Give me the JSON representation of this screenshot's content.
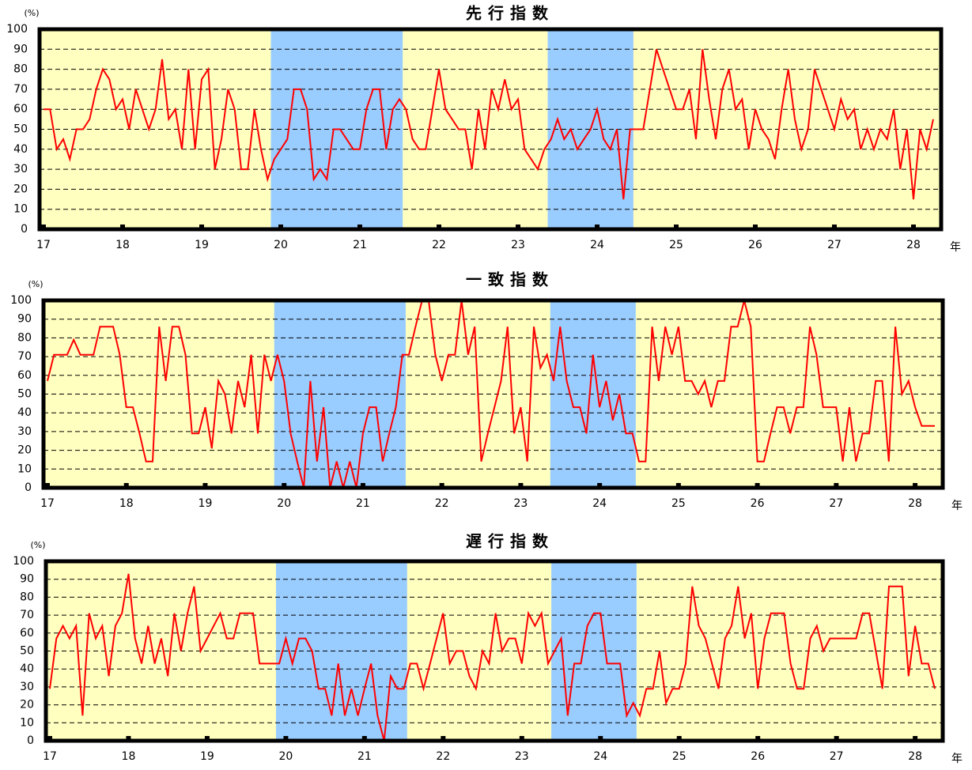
{
  "chart_data": [
    {
      "type": "line",
      "title": "先行指数",
      "y_unit": "(%)",
      "x_label": "年",
      "categories": [
        "17",
        null,
        null,
        null,
        null,
        null,
        null,
        null,
        null,
        null,
        null,
        null,
        "18",
        null,
        null,
        null,
        null,
        null,
        null,
        null,
        null,
        null,
        null,
        null,
        "19",
        null,
        null,
        null,
        null,
        null,
        null,
        null,
        null,
        null,
        null,
        null,
        "20",
        null,
        null,
        null,
        null,
        null,
        null,
        null,
        null,
        null,
        null,
        null,
        "21",
        null,
        null,
        null,
        null,
        null,
        null,
        null,
        null,
        null,
        null,
        null,
        "22",
        null,
        null,
        null,
        null,
        null,
        null,
        null,
        null,
        null,
        null,
        null,
        "23",
        null,
        null,
        null,
        null,
        null,
        null,
        null,
        null,
        null,
        null,
        null,
        "24",
        null,
        null,
        null,
        null,
        null,
        null,
        null,
        null,
        null,
        null,
        null,
        "25",
        null,
        null,
        null,
        null,
        null,
        null,
        null,
        null,
        null,
        null,
        null,
        "26",
        null,
        null,
        null,
        null,
        null,
        null,
        null,
        null,
        null,
        null,
        null,
        "27",
        null,
        null,
        null,
        null,
        null,
        null,
        null,
        null,
        null,
        null,
        null,
        "28",
        null,
        null,
        null
      ],
      "series": [
        {
          "color": "#ff0000",
          "values": [
            60,
            60,
            40,
            45,
            35,
            50,
            50,
            55,
            70,
            80,
            75,
            60,
            65,
            50,
            70,
            60,
            50,
            60,
            85,
            55,
            60,
            40,
            80,
            40,
            75,
            80,
            30,
            45,
            70,
            60,
            30,
            30,
            60,
            40,
            25,
            35,
            40,
            45,
            70,
            70,
            60,
            25,
            30,
            25,
            50,
            50,
            45,
            40,
            40,
            60,
            70,
            70,
            40,
            60,
            65,
            60,
            45,
            40,
            40,
            60,
            80,
            60,
            55,
            50,
            50,
            30,
            60,
            40,
            70,
            60,
            75,
            60,
            65,
            40,
            35,
            30,
            40,
            45,
            55,
            45,
            50,
            40,
            45,
            50,
            60,
            45,
            40,
            50,
            15,
            50,
            50,
            50,
            70,
            90,
            80,
            70,
            60,
            60,
            70,
            45,
            90,
            65,
            45,
            70,
            80,
            60,
            65,
            40,
            60,
            50,
            45,
            35,
            60,
            80,
            55,
            40,
            50,
            80,
            70,
            60,
            50,
            65,
            55,
            60,
            40,
            50,
            40,
            50,
            45,
            60,
            30,
            50,
            15,
            50,
            40,
            55
          ]
        }
      ],
      "ylim": [
        0,
        100
      ],
      "yticks": [
        0,
        10,
        20,
        30,
        40,
        50,
        60,
        70,
        80,
        90,
        100
      ],
      "grid": true,
      "background": "#ffffc0",
      "shading": {
        "color": "#99ccff",
        "ranges": [
          [
            34.5,
            54.5
          ],
          [
            76.5,
            89.5
          ]
        ]
      }
    },
    {
      "type": "line",
      "title": "一致指数",
      "y_unit": "(%)",
      "x_label": "年",
      "categories": [
        "17",
        null,
        null,
        null,
        null,
        null,
        null,
        null,
        null,
        null,
        null,
        null,
        "18",
        null,
        null,
        null,
        null,
        null,
        null,
        null,
        null,
        null,
        null,
        null,
        "19",
        null,
        null,
        null,
        null,
        null,
        null,
        null,
        null,
        null,
        null,
        null,
        "20",
        null,
        null,
        null,
        null,
        null,
        null,
        null,
        null,
        null,
        null,
        null,
        "21",
        null,
        null,
        null,
        null,
        null,
        null,
        null,
        null,
        null,
        null,
        null,
        "22",
        null,
        null,
        null,
        null,
        null,
        null,
        null,
        null,
        null,
        null,
        null,
        "23",
        null,
        null,
        null,
        null,
        null,
        null,
        null,
        null,
        null,
        null,
        null,
        "24",
        null,
        null,
        null,
        null,
        null,
        null,
        null,
        null,
        null,
        null,
        null,
        "25",
        null,
        null,
        null,
        null,
        null,
        null,
        null,
        null,
        null,
        null,
        null,
        "26",
        null,
        null,
        null,
        null,
        null,
        null,
        null,
        null,
        null,
        null,
        null,
        "27",
        null,
        null,
        null,
        null,
        null,
        null,
        null,
        null,
        null,
        null,
        null,
        "28",
        null,
        null,
        null
      ],
      "series": [
        {
          "color": "#ff0000",
          "values": [
            57,
            71,
            71,
            71,
            79,
            71,
            71,
            71,
            86,
            86,
            86,
            71,
            43,
            43,
            29,
            14,
            14,
            86,
            57,
            86,
            86,
            71,
            29,
            29,
            43,
            21,
            57,
            50,
            29,
            57,
            43,
            71,
            29,
            71,
            57,
            71,
            57,
            29,
            14,
            0,
            57,
            14,
            43,
            0,
            14,
            0,
            14,
            0,
            29,
            43,
            43,
            14,
            29,
            43,
            71,
            71,
            86,
            100,
            100,
            71,
            57,
            71,
            71,
            100,
            71,
            86,
            14,
            29,
            43,
            57,
            86,
            29,
            43,
            14,
            86,
            64,
            71,
            57,
            86,
            57,
            43,
            43,
            29,
            71,
            43,
            57,
            36,
            50,
            29,
            29,
            14,
            14,
            86,
            57,
            86,
            71,
            86,
            57,
            57,
            50,
            57,
            43,
            57,
            57,
            86,
            86,
            100,
            86,
            14,
            14,
            29,
            43,
            43,
            29,
            43,
            43,
            86,
            71,
            43,
            43,
            43,
            14,
            43,
            14,
            29,
            29,
            57,
            57,
            14,
            86,
            50,
            57,
            43,
            33,
            33,
            33
          ]
        }
      ],
      "ylim": [
        0,
        100
      ],
      "yticks": [
        0,
        10,
        20,
        30,
        40,
        50,
        60,
        70,
        80,
        90,
        100
      ],
      "grid": true,
      "background": "#ffffc0",
      "shading": {
        "color": "#99ccff",
        "ranges": [
          [
            34.5,
            54.5
          ],
          [
            76.5,
            89.5
          ]
        ]
      }
    },
    {
      "type": "line",
      "title": "遅行指数",
      "y_unit": "(%)",
      "x_label": "年",
      "categories": [
        "17",
        null,
        null,
        null,
        null,
        null,
        null,
        null,
        null,
        null,
        null,
        null,
        "18",
        null,
        null,
        null,
        null,
        null,
        null,
        null,
        null,
        null,
        null,
        null,
        "19",
        null,
        null,
        null,
        null,
        null,
        null,
        null,
        null,
        null,
        null,
        null,
        "20",
        null,
        null,
        null,
        null,
        null,
        null,
        null,
        null,
        null,
        null,
        null,
        "21",
        null,
        null,
        null,
        null,
        null,
        null,
        null,
        null,
        null,
        null,
        null,
        "22",
        null,
        null,
        null,
        null,
        null,
        null,
        null,
        null,
        null,
        null,
        null,
        "23",
        null,
        null,
        null,
        null,
        null,
        null,
        null,
        null,
        null,
        null,
        null,
        "24",
        null,
        null,
        null,
        null,
        null,
        null,
        null,
        null,
        null,
        null,
        null,
        "25",
        null,
        null,
        null,
        null,
        null,
        null,
        null,
        null,
        null,
        null,
        null,
        "26",
        null,
        null,
        null,
        null,
        null,
        null,
        null,
        null,
        null,
        null,
        null,
        "27",
        null,
        null,
        null,
        null,
        null,
        null,
        null,
        null,
        null,
        null,
        null,
        "28",
        null,
        null,
        null
      ],
      "series": [
        {
          "color": "#ff0000",
          "values": [
            29,
            57,
            64,
            57,
            64,
            14,
            71,
            57,
            64,
            36,
            64,
            71,
            93,
            57,
            43,
            64,
            43,
            57,
            36,
            71,
            50,
            71,
            86,
            50,
            57,
            64,
            71,
            57,
            57,
            71,
            71,
            71,
            43,
            43,
            43,
            43,
            57,
            43,
            57,
            57,
            50,
            29,
            29,
            14,
            43,
            14,
            29,
            14,
            29,
            43,
            14,
            0,
            36,
            29,
            29,
            43,
            43,
            29,
            43,
            57,
            71,
            43,
            50,
            50,
            36,
            29,
            50,
            43,
            71,
            50,
            57,
            57,
            43,
            71,
            64,
            71,
            43,
            50,
            57,
            14,
            43,
            43,
            64,
            71,
            71,
            43,
            43,
            43,
            14,
            21,
            14,
            29,
            29,
            50,
            21,
            29,
            29,
            43,
            86,
            64,
            57,
            43,
            29,
            57,
            64,
            86,
            57,
            71,
            29,
            57,
            71,
            71,
            71,
            43,
            29,
            29,
            57,
            64,
            50,
            57,
            57,
            57,
            57,
            57,
            71,
            71,
            50,
            29,
            86,
            86,
            86,
            36,
            64,
            43,
            43,
            29
          ]
        }
      ],
      "ylim": [
        0,
        100
      ],
      "yticks": [
        0,
        10,
        20,
        30,
        40,
        50,
        60,
        70,
        80,
        90,
        100
      ],
      "grid": true,
      "background": "#ffffc0",
      "shading": {
        "color": "#99ccff",
        "ranges": [
          [
            34.5,
            54.5
          ],
          [
            76.5,
            89.5
          ]
        ]
      }
    }
  ]
}
